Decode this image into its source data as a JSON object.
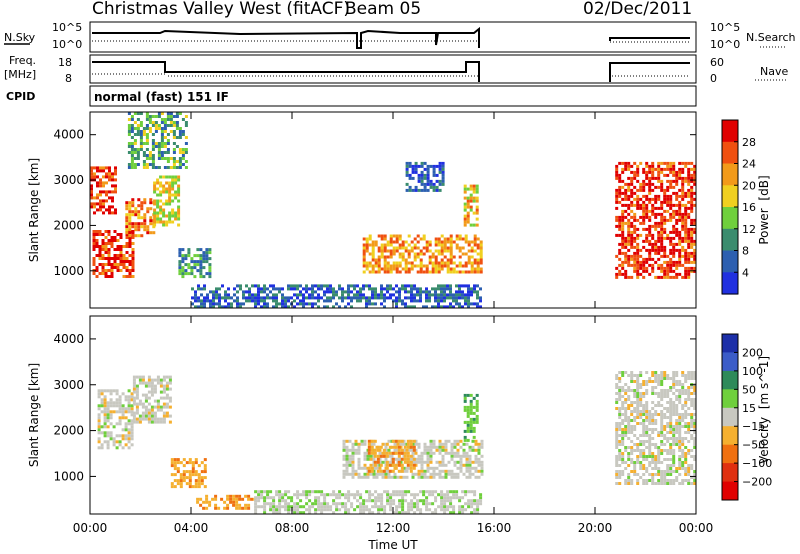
{
  "header": {
    "station": "Christmas Valley West (fitACF)",
    "beam": "Beam 05",
    "date": "02/Dec/2011"
  },
  "strip_labels": {
    "nsky": "N.Sky",
    "nsky_ticks": [
      "10^5",
      "10^0"
    ],
    "nsearch": "N.Search",
    "nsearch_ticks": [
      "10^5",
      "10^0"
    ],
    "freq_line1": "Freq.",
    "freq_line2": "[MHz]",
    "freq_ticks": [
      "18",
      "8"
    ],
    "nave": "Nave",
    "nave_ticks": [
      "60",
      "0"
    ],
    "cpid": "CPID",
    "cpid_text": "normal (fast) 151 IF"
  },
  "chart_data": [
    {
      "type": "heatmap",
      "name": "power-panel",
      "quantity": "Power",
      "unit": "[dB]",
      "ylabel": "Slant Range [km]",
      "xlabel": "Time UT",
      "x_ticks": [
        "00:00",
        "04:00",
        "08:00",
        "12:00",
        "16:00",
        "20:00",
        "00:00"
      ],
      "x_tick_hours": [
        0,
        4,
        8,
        12,
        16,
        20,
        24
      ],
      "xlim_hours": [
        0,
        24
      ],
      "ylim_km": [
        180,
        4500
      ],
      "y_ticks": [
        1000,
        2000,
        3000,
        4000
      ],
      "colorbar_ticks": [
        "28",
        "24",
        "20",
        "16",
        "12",
        "8",
        "4"
      ],
      "colorbar_range": [
        0,
        32
      ],
      "colorbar_colors": [
        "#2030e0",
        "#2c5fb0",
        "#3a8c6e",
        "#6fcf3c",
        "#f0d020",
        "#f29a1a",
        "#f05010",
        "#e00000"
      ],
      "echo_regions": [
        {
          "t": [
            0.1,
            1.7
          ],
          "r": [
            900,
            1900
          ],
          "level": 28
        },
        {
          "t": [
            0.0,
            1.0
          ],
          "r": [
            2300,
            3300
          ],
          "level": 28
        },
        {
          "t": [
            1.4,
            2.5
          ],
          "r": [
            1800,
            2600
          ],
          "level": 24
        },
        {
          "t": [
            2.5,
            3.5
          ],
          "r": [
            2000,
            3100
          ],
          "level": 18
        },
        {
          "t": [
            3.5,
            4.8
          ],
          "r": [
            900,
            1500
          ],
          "level": 10
        },
        {
          "t": [
            1.5,
            3.8
          ],
          "r": [
            3300,
            4500
          ],
          "level": 12
        },
        {
          "t": [
            4.0,
            15.5
          ],
          "r": [
            200,
            700
          ],
          "level": 6
        },
        {
          "t": [
            10.8,
            15.5
          ],
          "r": [
            1000,
            1800
          ],
          "level": 22
        },
        {
          "t": [
            14.8,
            15.3
          ],
          "r": [
            2000,
            2900
          ],
          "level": 20
        },
        {
          "t": [
            12.5,
            14.0
          ],
          "r": [
            2800,
            3400
          ],
          "level": 6
        },
        {
          "t": [
            20.8,
            24.0
          ],
          "r": [
            850,
            3400
          ],
          "level": 28
        }
      ]
    },
    {
      "type": "heatmap",
      "name": "velocity-panel",
      "quantity": "Velocity",
      "unit": "[m s^-1]",
      "ylabel": "Slant Range [km]",
      "xlabel": "Time UT",
      "x_ticks": [
        "00:00",
        "04:00",
        "08:00",
        "12:00",
        "16:00",
        "20:00",
        "00:00"
      ],
      "x_tick_hours": [
        0,
        4,
        8,
        12,
        16,
        20,
        24
      ],
      "xlim_hours": [
        0,
        24
      ],
      "ylim_km": [
        180,
        4500
      ],
      "y_ticks": [
        1000,
        2000,
        3000,
        4000
      ],
      "colorbar_ticks": [
        "200",
        "100",
        "50",
        "15",
        "−15",
        "−50",
        "−100",
        "−200"
      ],
      "colorbar_colors": [
        "#1c2fa8",
        "#3b5cc8",
        "#2e8a5a",
        "#6fcf3c",
        "#c8c8c0",
        "#f5b030",
        "#f07010",
        "#e03010",
        "#e00000"
      ],
      "echo_regions": [
        {
          "t": [
            0.3,
            1.7
          ],
          "r": [
            1600,
            2900
          ],
          "level": 0
        },
        {
          "t": [
            1.7,
            3.2
          ],
          "r": [
            2200,
            3200
          ],
          "level": 0
        },
        {
          "t": [
            3.2,
            4.6
          ],
          "r": [
            800,
            1400
          ],
          "level": -40
        },
        {
          "t": [
            4.2,
            6.5
          ],
          "r": [
            300,
            600
          ],
          "level": -45
        },
        {
          "t": [
            6.5,
            15.5
          ],
          "r": [
            200,
            700
          ],
          "level": 5
        },
        {
          "t": [
            10.0,
            15.5
          ],
          "r": [
            1000,
            1800
          ],
          "level": 0
        },
        {
          "t": [
            11.0,
            12.8
          ],
          "r": [
            1100,
            1800
          ],
          "level": -40
        },
        {
          "t": [
            14.8,
            15.3
          ],
          "r": [
            1800,
            2800
          ],
          "level": 40
        },
        {
          "t": [
            20.8,
            24.0
          ],
          "r": [
            850,
            3300
          ],
          "level": 0
        }
      ]
    }
  ]
}
